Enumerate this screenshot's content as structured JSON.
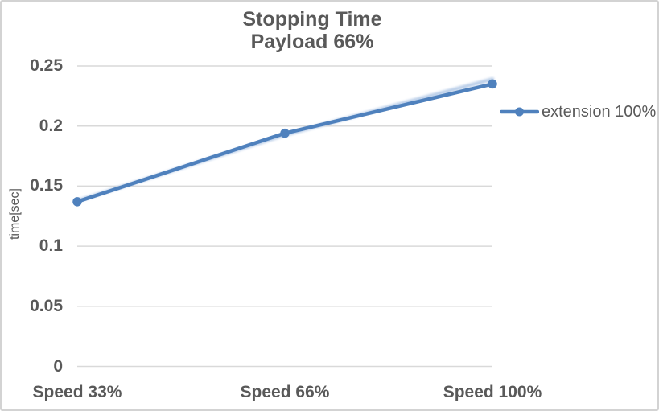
{
  "chart": {
    "title": "Stopping Time",
    "subtitle": "Payload 66%",
    "y_axis_title": "time[sec]",
    "legend": {
      "label": "extension 100%"
    },
    "colors": {
      "line": "#4F81BD",
      "line_glow": "#B3C9E6",
      "marker": "#4F81BD",
      "gridline": "#D9D9D9",
      "text": "#595959",
      "border": "#D3D3D3",
      "background": "#FFFFFF"
    }
  },
  "chart_data": {
    "type": "line",
    "title": "Stopping Time",
    "subtitle": "Payload 66%",
    "xlabel": "",
    "ylabel": "time[sec]",
    "categories": [
      "Speed 33%",
      "Speed 66%",
      "Speed 100%"
    ],
    "series": [
      {
        "name": "extension 100%",
        "values": [
          0.137,
          0.194,
          0.235
        ]
      }
    ],
    "ylim": [
      0,
      0.25
    ],
    "ytick_values": [
      0,
      0.05,
      0.1,
      0.15,
      0.2,
      0.25
    ],
    "ytick_labels": [
      "0",
      "0.05",
      "0.1",
      "0.15",
      "0.2",
      "0.25"
    ],
    "grid": true,
    "legend_position": "right",
    "marker": "circle"
  }
}
